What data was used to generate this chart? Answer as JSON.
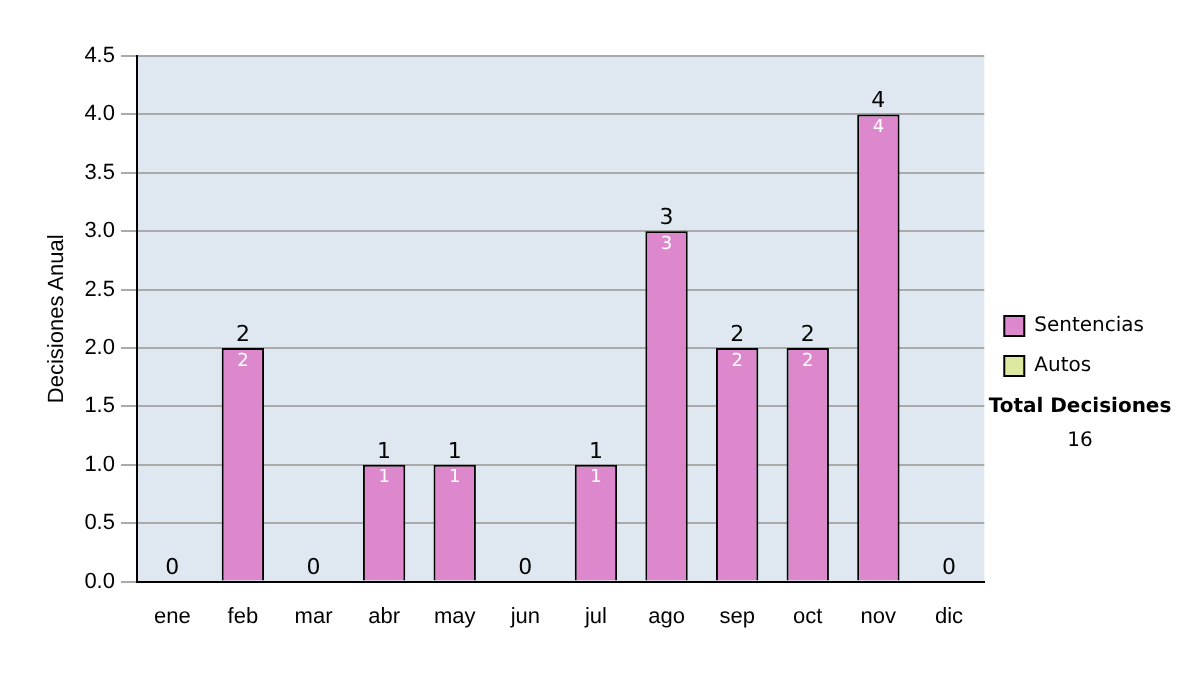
{
  "chart_data": {
    "type": "bar",
    "ylabel": "Decisiones Anual",
    "categories": [
      "ene",
      "feb",
      "mar",
      "abr",
      "may",
      "jun",
      "jul",
      "ago",
      "sep",
      "oct",
      "nov",
      "dic"
    ],
    "series": [
      {
        "name": "Sentencias",
        "color": "#dd88cc",
        "values": [
          0,
          2,
          0,
          1,
          1,
          0,
          1,
          3,
          2,
          2,
          4,
          0
        ],
        "value_labels": [
          null,
          "2",
          null,
          "1",
          "1",
          null,
          "1",
          "3",
          "2",
          "2",
          "4",
          null
        ]
      },
      {
        "name": "Autos",
        "color": "#dde8a0",
        "values": [
          0,
          0,
          0,
          0,
          0,
          0,
          0,
          0,
          0,
          0,
          0,
          0
        ]
      }
    ],
    "stacked": true,
    "totals": [
      "0",
      "2",
      "0",
      "1",
      "1",
      "0",
      "1",
      "3",
      "2",
      "2",
      "4",
      "0"
    ],
    "ylim": [
      0,
      4.5
    ],
    "yticks": [
      {
        "value": 0,
        "label": "0.0"
      },
      {
        "value": 0.5,
        "label": "0.5"
      },
      {
        "value": 1,
        "label": "1.0"
      },
      {
        "value": 1.5,
        "label": "1.5"
      },
      {
        "value": 2,
        "label": "2.0"
      },
      {
        "value": 2.5,
        "label": "2.5"
      },
      {
        "value": 3,
        "label": "3.0"
      },
      {
        "value": 3.5,
        "label": "3.5"
      },
      {
        "value": 4,
        "label": "4.0"
      },
      {
        "value": 4.5,
        "label": "4.5"
      }
    ],
    "grid": "y",
    "legend": "right",
    "annotations": [
      "Total Decisiones",
      "16"
    ]
  }
}
